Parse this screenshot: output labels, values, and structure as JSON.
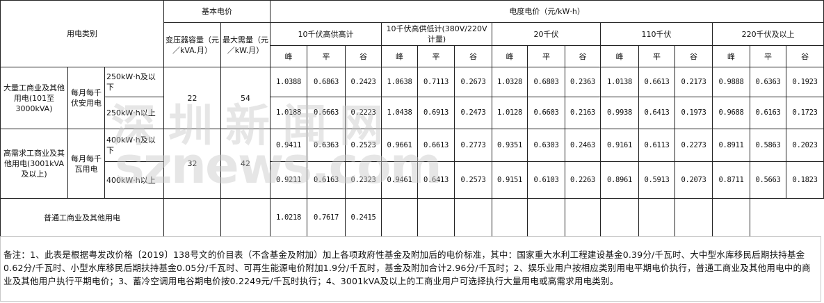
{
  "header": {
    "category": "用电类别",
    "basic_price": "基本电价",
    "transformer": "变压器容量（元／kVA.月）",
    "max_demand": "最大需量（元／kW.月）",
    "energy_price": "电度电价（元/kW·h）",
    "voltage_levels": [
      "10千伏高供高计",
      "10千伏高供低计(380V/220V计量)",
      "20千伏",
      "110千伏",
      "220千伏及以上"
    ],
    "periods": [
      "峰",
      "平",
      "谷"
    ]
  },
  "groups": [
    {
      "name": "大量工商业及其他用电(101至3000kVA)",
      "unit": "每月每千伏安用电",
      "transformer": "22",
      "max_demand": "54",
      "rows": [
        {
          "range": "250kW·h及以下",
          "values": [
            "1.0388",
            "0.6863",
            "0.2423",
            "1.0638",
            "0.7113",
            "0.2673",
            "1.0328",
            "0.6803",
            "0.2363",
            "1.0138",
            "0.6613",
            "0.2173",
            "0.9888",
            "0.6363",
            "0.1923"
          ]
        },
        {
          "range": "250kW·h以上",
          "values": [
            "1.0188",
            "0.6663",
            "0.2223",
            "1.0438",
            "0.6913",
            "0.2473",
            "1.0128",
            "0.6603",
            "0.2163",
            "0.9938",
            "0.6413",
            "0.1973",
            "0.9688",
            "0.6163",
            "0.1723"
          ]
        }
      ]
    },
    {
      "name": "高需求工商业及其他用电(3001kVA及以上)",
      "unit": "每月每千瓦用电",
      "transformer": "32",
      "max_demand": "42",
      "rows": [
        {
          "range": "400kW·h及以下",
          "values": [
            "0.9411",
            "0.6363",
            "0.2523",
            "0.9661",
            "0.6613",
            "0.2773",
            "0.9351",
            "0.6303",
            "0.2463",
            "0.9161",
            "0.6113",
            "0.2273",
            "0.8911",
            "0.5863",
            "0.2023"
          ]
        },
        {
          "range": "400kW·h以上",
          "values": [
            "0.9211",
            "0.6163",
            "0.2323",
            "0.9461",
            "0.6413",
            "0.2573",
            "0.9151",
            "0.6103",
            "0.2263",
            "0.8961",
            "0.5913",
            "0.2073",
            "0.8711",
            "0.5663",
            "0.1823"
          ]
        }
      ]
    }
  ],
  "general": {
    "name": "普通工商业及其他用电",
    "values": [
      "",
      "",
      "",
      "",
      "",
      "1.0218",
      "0.7617",
      "0.2415",
      "",
      "",
      "",
      "",
      "",
      "",
      "",
      "",
      "",
      ""
    ]
  },
  "notes": "备注：1、此表是根据粤发改价格〔2019〕138号文的价目表（不含基金及附加）加上各项政府性基金及附加后的电价标准，其中：国家重大水利工程建设基金0.39分/千瓦时、大中型水库移民后期扶持基金0.62分/千瓦时、小型水库移民后期扶持基金0.05分/千瓦时、可再生能源电价附加1.9分/千瓦时，基金及附加合计2.96分/千瓦时；2、娱乐业用户按相应类别用电平期电价执行，普通工商业及其他用电中的商业及其他用户执行平期电价；3、蓄冷空调用电谷期电价按0.2249元/千瓦时执行；4、3001kVA及以上的工商业用户可选择执行大量用电或高需求用电类别。",
  "watermark": {
    "cn": "深圳新闻网",
    "en": "sznews.com"
  }
}
